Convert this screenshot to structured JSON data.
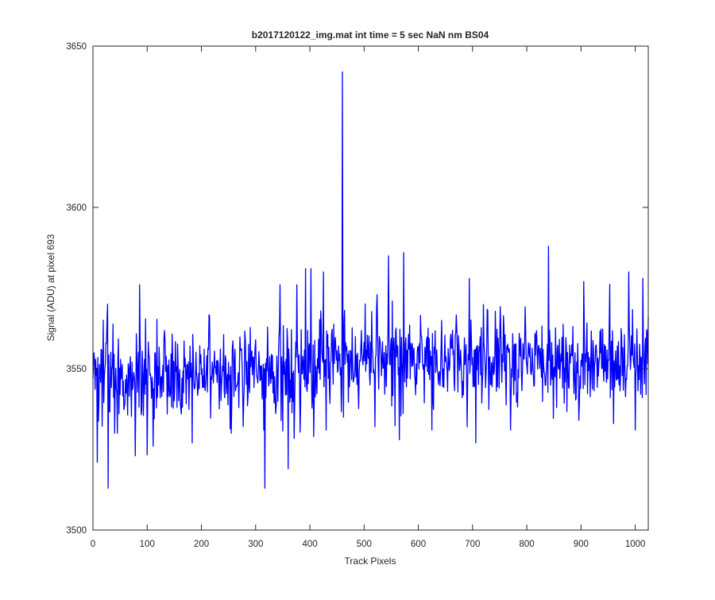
{
  "chart_data": {
    "type": "line",
    "title": "b2017120122_img.mat int time = 5 sec  NaN nm BS04",
    "xlabel": "Track Pixels",
    "ylabel": "Signal (ADU) at pixel 693",
    "xlim": [
      0,
      1024
    ],
    "ylim": [
      3500,
      3650
    ],
    "xticks": [
      0,
      100,
      200,
      300,
      400,
      500,
      600,
      700,
      800,
      900,
      1000
    ],
    "yticks": [
      3500,
      3550,
      3600,
      3650
    ],
    "grid": false,
    "line_color": "#0000ff",
    "series": [
      {
        "noise_range": [
          3520,
          3580
        ],
        "baseline_points": [
          [
            0,
            3547
          ],
          [
            380,
            3549
          ],
          [
            400,
            3553
          ],
          [
            1024,
            3553
          ]
        ],
        "marked_points": [
          [
            0,
            3547
          ],
          [
            6,
            3548
          ],
          [
            8,
            3521
          ],
          [
            15,
            3556
          ],
          [
            27,
            3570
          ],
          [
            28,
            3513
          ],
          [
            40,
            3530
          ],
          [
            78,
            3523
          ],
          [
            86,
            3576
          ],
          [
            111,
            3526
          ],
          [
            183,
            3527
          ],
          [
            255,
            3530
          ],
          [
            315,
            3531
          ],
          [
            317,
            3513
          ],
          [
            345,
            3576
          ],
          [
            360,
            3519
          ],
          [
            376,
            3576
          ],
          [
            392,
            3581
          ],
          [
            402,
            3581
          ],
          [
            407,
            3529
          ],
          [
            425,
            3580
          ],
          [
            430,
            3531
          ],
          [
            460,
            3642
          ],
          [
            462,
            3535
          ],
          [
            520,
            3532
          ],
          [
            545,
            3585
          ],
          [
            565,
            3528
          ],
          [
            573,
            3586
          ],
          [
            625,
            3531
          ],
          [
            690,
            3532
          ],
          [
            694,
            3578
          ],
          [
            706,
            3527
          ],
          [
            770,
            3531
          ],
          [
            840,
            3588
          ],
          [
            855,
            3538
          ],
          [
            896,
            3534
          ],
          [
            905,
            3577
          ],
          [
            960,
            3533
          ],
          [
            988,
            3580
          ],
          [
            1000,
            3531
          ],
          [
            1014,
            3578
          ],
          [
            1020,
            3542
          ],
          [
            1024,
            3566
          ]
        ]
      }
    ]
  }
}
